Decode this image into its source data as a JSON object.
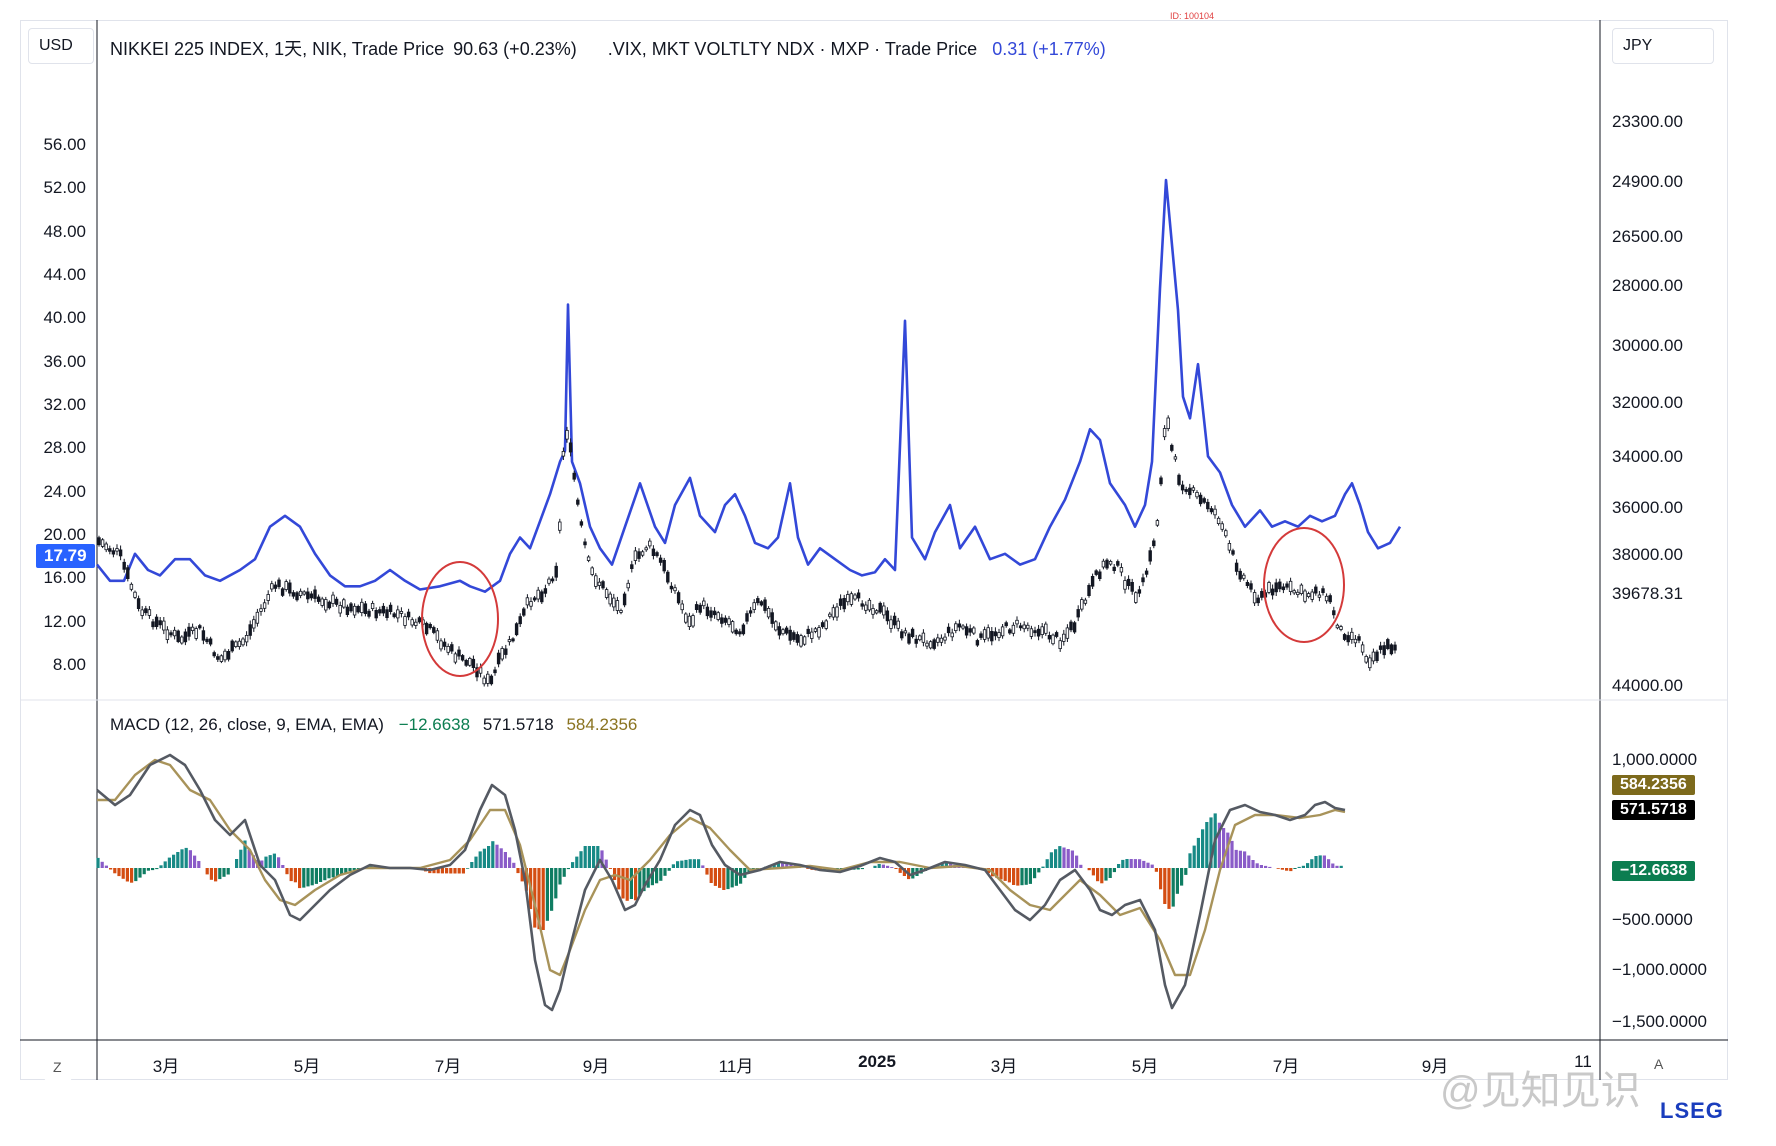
{
  "id_label": "ID: 100104",
  "left_currency": "USD",
  "right_currency": "JPY",
  "legend_main": {
    "nikkei": "NIKKEI 225 INDEX, 1天, NIK, Trade Price",
    "nikkei_value": "90.63 (+0.23%)",
    "vix": ".VIX, MKT VOLTLTY NDX · MXP · Trade Price",
    "vix_value": "0.31 (+1.77%)"
  },
  "legend_macd": {
    "label": "MACD (12, 26, close, 9, EMA, EMA)",
    "hist": "−12.6638",
    "macd": "571.5718",
    "signal": "584.2356"
  },
  "left_axis_ticks": [
    "56.00",
    "52.00",
    "48.00",
    "44.00",
    "40.00",
    "36.00",
    "32.00",
    "28.00",
    "24.00",
    "20.00",
    "16.00",
    "12.00",
    "8.00"
  ],
  "right_axis_ticks": [
    "23300.00",
    "24900.00",
    "26500.00",
    "28000.00",
    "30000.00",
    "32000.00",
    "34000.00",
    "36000.00",
    "38000.00",
    "39678.31",
    "44000.00"
  ],
  "macd_axis_ticks": [
    "1,000.0000",
    "−500.0000",
    "−1,000.0000",
    "−1,500.0000"
  ],
  "tags": {
    "vix_last": "17.79",
    "signal": "584.2356",
    "macd": "571.5718",
    "hist": "−12.6638"
  },
  "x_ticks": [
    "3月",
    "5月",
    "7月",
    "9月",
    "11月",
    "2025",
    "3月",
    "5月",
    "7月",
    "9月",
    "11"
  ],
  "corner_left": "Z",
  "corner_right": "A",
  "watermark": "@见知见识",
  "brand": "LSEG",
  "colors": {
    "vix": "#3348d8",
    "candle": "#131722",
    "macd": "#555a63",
    "signal": "#a8935a",
    "hist_up": "#8a5cc8",
    "hist_up2": "#188a86",
    "hist_down": "#d44d12",
    "hist_down2": "#0f7d62",
    "circle": "#d43a3a",
    "tag_vix": "#2962ff",
    "tag_signal": "#7d6a1c",
    "tag_macd": "#000000",
    "tag_hist": "#0b7d50"
  },
  "chart_data": [
    {
      "type": "line",
      "title": "NIKKEI 225 INDEX vs .VIX",
      "x": [
        "2024-02",
        "2024-03",
        "2024-05",
        "2024-07",
        "2024-08",
        "2024-09",
        "2024-11",
        "2025-01",
        "2025-03",
        "2025-04",
        "2025-05",
        "2025-07"
      ],
      "series": [
        {
          "name": ".VIX, MKT VOLTLTY NDX · MXP · Trade Price",
          "axis": "left",
          "values": [
            14.5,
            13.5,
            18,
            12,
            38.5,
            16,
            21,
            14,
            16,
            52,
            22,
            17.8
          ]
        },
        {
          "name": "NIKKEI 225 INDEX, 1天, NIK, Trade Price",
          "axis": "right (inverted)",
          "values": [
            36000,
            39500,
            38800,
            40500,
            32000,
            36500,
            38800,
            39800,
            36800,
            32000,
            38000,
            39678.31
          ]
        }
      ],
      "ylim_left": [
        6,
        58
      ],
      "ylim_right": [
        23300,
        44000
      ],
      "annotations": [
        "circle around 2024-07",
        "circle around 2025-07"
      ]
    },
    {
      "type": "line",
      "title": "MACD (12, 26, close, 9, EMA, EMA)",
      "series": [
        {
          "name": "MACD",
          "last": 571.5718
        },
        {
          "name": "Signal",
          "last": 584.2356
        },
        {
          "name": "Histogram",
          "last": -12.6638
        }
      ],
      "ylim": [
        -1600,
        1200
      ]
    }
  ]
}
